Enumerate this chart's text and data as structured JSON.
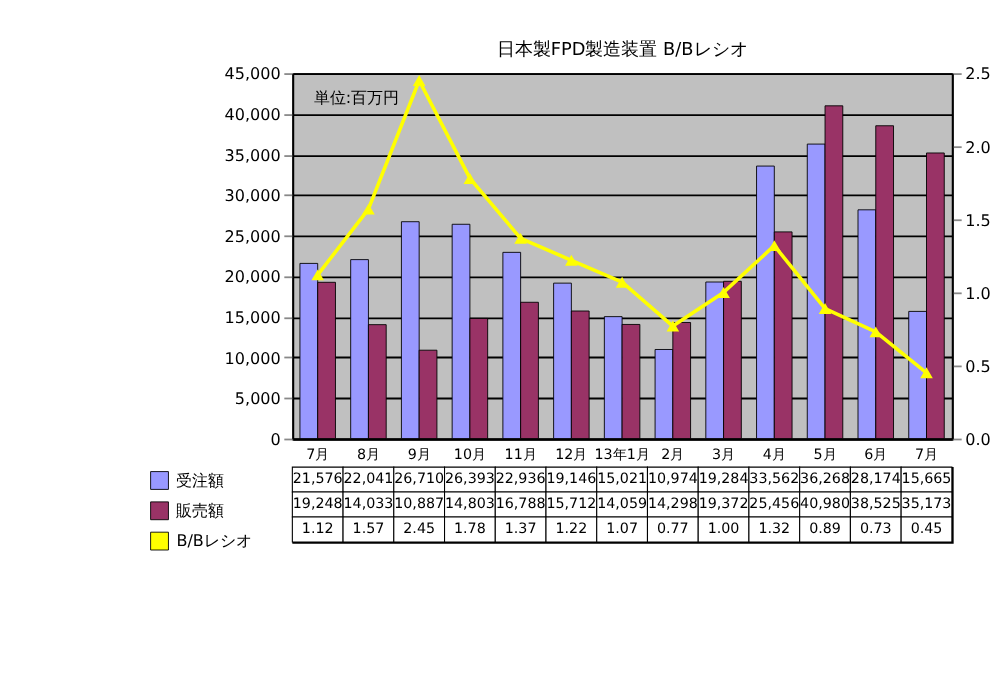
{
  "chart_data": {
    "type": "bar",
    "title": "日本製FPD製造装置 B/Bレシオ",
    "annotations": [
      "単位:百万円"
    ],
    "categories": [
      "7月",
      "8月",
      "9月",
      "10月",
      "11月",
      "12月",
      "13年1月",
      "2月",
      "3月",
      "4月",
      "5月",
      "6月",
      "7月"
    ],
    "series": [
      {
        "name": "受注額",
        "color": "#9999ff",
        "values": [
          21576,
          22041,
          26710,
          26393,
          22936,
          19146,
          15021,
          10974,
          19284,
          33562,
          36268,
          28174,
          15665
        ],
        "value_labels": [
          "21,576",
          "22,041",
          "26,710",
          "26,393",
          "22,936",
          "19,146",
          "15,021",
          "10,974",
          "19,284",
          "33,562",
          "36,268",
          "28,174",
          "15,665"
        ]
      },
      {
        "name": "販売額",
        "color": "#993366",
        "values": [
          19248,
          14033,
          10887,
          14803,
          16788,
          15712,
          14059,
          14298,
          19372,
          25456,
          40980,
          38525,
          35173
        ],
        "value_labels": [
          "19,248",
          "14,033",
          "10,887",
          "14,803",
          "16,788",
          "15,712",
          "14,059",
          "14,298",
          "19,372",
          "25,456",
          "40,980",
          "38,525",
          "35,173"
        ]
      },
      {
        "name": "B/Bレシオ",
        "color": "#ffff00",
        "type": "line",
        "axis": "y2",
        "marker": "triangle",
        "values": [
          1.12,
          1.57,
          2.45,
          1.78,
          1.37,
          1.22,
          1.07,
          0.77,
          1.0,
          1.32,
          0.89,
          0.73,
          0.45
        ],
        "value_labels": [
          "1.12",
          "1.57",
          "2.45",
          "1.78",
          "1.37",
          "1.22",
          "1.07",
          "0.77",
          "1.00",
          "1.32",
          "0.89",
          "0.73",
          "0.45"
        ]
      }
    ],
    "ylim": [
      0,
      45000
    ],
    "yticks": [
      0,
      {
        "value": 5000,
        "label": "5,000"
      },
      {
        "value": 10000,
        "label": "10,000"
      },
      {
        "value": 15000,
        "label": "15,000"
      },
      {
        "value": 20000,
        "label": "20,000"
      },
      {
        "value": 25000,
        "label": "25,000"
      },
      {
        "value": 30000,
        "label": "30,000"
      },
      {
        "value": 35000,
        "label": "35,000"
      },
      {
        "value": 40000,
        "label": "40,000"
      },
      {
        "value": 45000,
        "label": "45,000"
      }
    ],
    "y2lim": [
      0,
      2.5
    ],
    "y2ticks": [
      {
        "value": 0,
        "label": "0.0"
      },
      0.5,
      {
        "value": 1,
        "label": "1.0"
      },
      1.5,
      {
        "value": 2,
        "label": "2.0"
      },
      2.5
    ],
    "grid": "y",
    "legend": "bottom left"
  }
}
